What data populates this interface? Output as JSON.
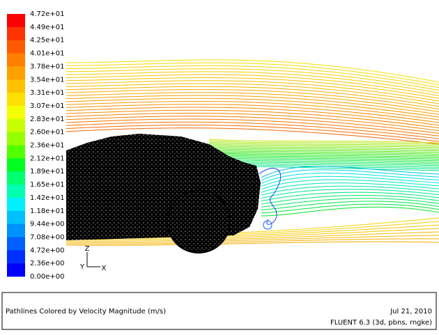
{
  "legend": {
    "labels": [
      "4.72e+01",
      "4.49e+01",
      "4.25e+01",
      "4.01e+01",
      "3.78e+01",
      "3.54e+01",
      "3.31e+01",
      "3.07e+01",
      "2.83e+01",
      "2.60e+01",
      "2.36e+01",
      "2.12e+01",
      "1.89e+01",
      "1.65e+01",
      "1.42e+01",
      "1.18e+01",
      "9.44e+00",
      "7.08e+00",
      "4.72e+00",
      "2.36e+00",
      "0.00e+00"
    ],
    "colors": [
      "#ff0000",
      "#ff3300",
      "#ff5a00",
      "#ff7f00",
      "#ffa000",
      "#ffc000",
      "#ffe000",
      "#f4ff00",
      "#c8ff00",
      "#96ff00",
      "#50ff00",
      "#00ff20",
      "#00ff70",
      "#00ffb0",
      "#00f0ff",
      "#00c0ff",
      "#0090ff",
      "#0060ff",
      "#0030ff",
      "#0000ff"
    ]
  },
  "axes": {
    "z": "Z",
    "y": "Y",
    "x": "X"
  },
  "footer": {
    "title": "Pathlines Colored by Velocity Magnitude (m/s)",
    "date": "Jul 21, 2010",
    "version": "FLUENT 6.3 (3d, pbns, rngke)"
  }
}
